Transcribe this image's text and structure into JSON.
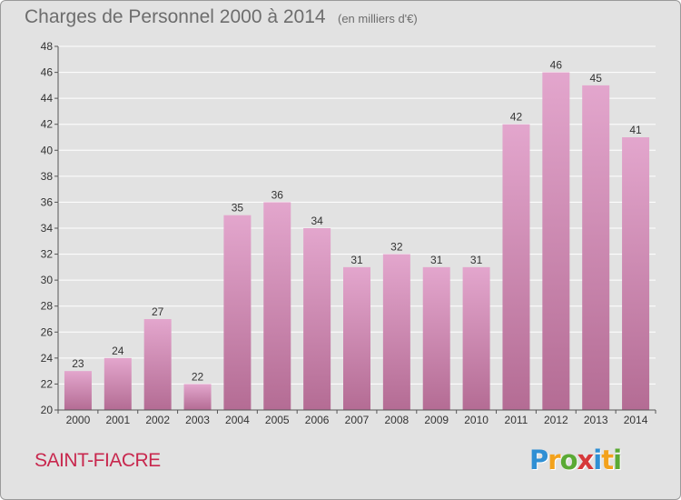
{
  "title": "Charges de Personnel 2000 à 2014",
  "subtitle": "(en milliers d'€)",
  "commune": "SAINT-FIACRE",
  "logo": {
    "letters": [
      {
        "char": "P",
        "color": "#2f8fd4"
      },
      {
        "char": "r",
        "color": "#f3a21c"
      },
      {
        "char": "o",
        "color": "#5aaa34"
      },
      {
        "char": "x",
        "color": "#d6383a"
      },
      {
        "char": "i",
        "color": "#2f8fd4"
      },
      {
        "char": "t",
        "color": "#f3a21c"
      },
      {
        "char": "i",
        "color": "#5aaa34"
      }
    ]
  },
  "colors": {
    "bar_top": "#e3a6cd",
    "bar_bottom": "#b46c94",
    "axis": "#555555",
    "grid": "#ffffff"
  },
  "chart_data": {
    "type": "bar",
    "categories": [
      "2000",
      "2001",
      "2002",
      "2003",
      "2004",
      "2005",
      "2006",
      "2007",
      "2008",
      "2009",
      "2010",
      "2011",
      "2012",
      "2013",
      "2014"
    ],
    "values": [
      23,
      24,
      27,
      22,
      35,
      36,
      34,
      31,
      32,
      31,
      31,
      42,
      46,
      45,
      41
    ],
    "ylim": [
      20,
      48
    ],
    "yticks": [
      20,
      22,
      24,
      26,
      28,
      30,
      32,
      34,
      36,
      38,
      40,
      42,
      44,
      46,
      48
    ],
    "grid": true,
    "data_labels": true
  }
}
